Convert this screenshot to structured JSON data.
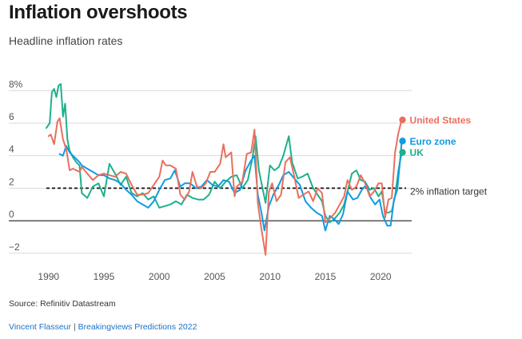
{
  "header": {
    "title": "Inflation overshoots",
    "subtitle": "Headline inflation rates"
  },
  "footer": {
    "source": "Source: Refinitiv Datastream",
    "author": "Vincent Flasseur",
    "separator": "|",
    "publication": "Breakingviews Predictions 2022"
  },
  "colors": {
    "us": "#e8705f",
    "euro": "#0f9be3",
    "uk": "#1fb08c",
    "grid": "#d9d9d9",
    "axis": "#333333",
    "target": "#111111",
    "tick_text": "#555555"
  },
  "chart_data": {
    "type": "line",
    "title": "Inflation overshoots",
    "subtitle": "Headline inflation rates",
    "xlim": [
      1988.5,
      2022.8
    ],
    "ylim": [
      -2.6,
      8.8
    ],
    "x_ticks": [
      1990,
      1995,
      2000,
      2005,
      2010,
      2015,
      2020
    ],
    "x_tick_labels": [
      "1990",
      "1995",
      "2000",
      "2005",
      "2010",
      "2015",
      "2020"
    ],
    "y_ticks": [
      8,
      6,
      4,
      2,
      0,
      -2
    ],
    "y_tick_labels": [
      "8%",
      "6",
      "4",
      "2",
      "0",
      "−2"
    ],
    "grid": "horizontal",
    "reference_line": {
      "y": 2,
      "label": "2% inflation target",
      "style": "dashed"
    },
    "series": [
      {
        "name": "United States",
        "key": "us",
        "points": [
          [
            1990.0,
            5.2
          ],
          [
            1990.2,
            5.3
          ],
          [
            1990.5,
            4.7
          ],
          [
            1990.8,
            6.1
          ],
          [
            1991.0,
            6.3
          ],
          [
            1991.3,
            5.0
          ],
          [
            1991.6,
            4.4
          ],
          [
            1991.9,
            3.1
          ],
          [
            1992.2,
            3.2
          ],
          [
            1992.5,
            3.1
          ],
          [
            1992.8,
            3.0
          ],
          [
            1993.0,
            3.3
          ],
          [
            1993.5,
            2.9
          ],
          [
            1994.0,
            2.5
          ],
          [
            1994.5,
            2.8
          ],
          [
            1995.0,
            2.9
          ],
          [
            1995.5,
            2.8
          ],
          [
            1996.0,
            2.7
          ],
          [
            1996.5,
            3.0
          ],
          [
            1997.0,
            2.9
          ],
          [
            1997.5,
            2.2
          ],
          [
            1998.0,
            1.6
          ],
          [
            1998.5,
            1.6
          ],
          [
            1999.0,
            1.7
          ],
          [
            1999.5,
            2.2
          ],
          [
            2000.0,
            2.7
          ],
          [
            2000.3,
            3.7
          ],
          [
            2000.6,
            3.4
          ],
          [
            2001.0,
            3.4
          ],
          [
            2001.5,
            3.2
          ],
          [
            2001.9,
            1.6
          ],
          [
            2002.3,
            1.3
          ],
          [
            2002.7,
            1.8
          ],
          [
            2003.0,
            3.0
          ],
          [
            2003.4,
            2.1
          ],
          [
            2003.8,
            2.0
          ],
          [
            2004.2,
            2.3
          ],
          [
            2004.6,
            3.0
          ],
          [
            2005.0,
            3.0
          ],
          [
            2005.5,
            3.5
          ],
          [
            2005.8,
            4.7
          ],
          [
            2006.0,
            3.9
          ],
          [
            2006.5,
            4.2
          ],
          [
            2006.8,
            1.5
          ],
          [
            2007.0,
            2.1
          ],
          [
            2007.5,
            2.4
          ],
          [
            2007.9,
            4.1
          ],
          [
            2008.3,
            4.2
          ],
          [
            2008.6,
            5.6
          ],
          [
            2008.9,
            1.1
          ],
          [
            2009.2,
            -0.4
          ],
          [
            2009.6,
            -2.1
          ],
          [
            2009.9,
            1.8
          ],
          [
            2010.2,
            2.3
          ],
          [
            2010.6,
            1.2
          ],
          [
            2011.0,
            1.6
          ],
          [
            2011.4,
            3.6
          ],
          [
            2011.8,
            3.9
          ],
          [
            2012.2,
            2.7
          ],
          [
            2012.6,
            1.4
          ],
          [
            2013.0,
            1.6
          ],
          [
            2013.5,
            1.8
          ],
          [
            2013.9,
            1.2
          ],
          [
            2014.3,
            2.0
          ],
          [
            2014.7,
            1.7
          ],
          [
            2015.0,
            -0.1
          ],
          [
            2015.5,
            0.2
          ],
          [
            2015.9,
            0.5
          ],
          [
            2016.3,
            1.0
          ],
          [
            2016.7,
            1.5
          ],
          [
            2017.0,
            2.5
          ],
          [
            2017.4,
            1.9
          ],
          [
            2017.8,
            2.1
          ],
          [
            2018.2,
            2.8
          ],
          [
            2018.6,
            2.3
          ],
          [
            2019.0,
            1.5
          ],
          [
            2019.4,
            1.8
          ],
          [
            2019.8,
            2.3
          ],
          [
            2020.1,
            2.3
          ],
          [
            2020.4,
            0.2
          ],
          [
            2020.7,
            1.3
          ],
          [
            2021.0,
            1.4
          ],
          [
            2021.3,
            4.2
          ],
          [
            2021.6,
            5.4
          ],
          [
            2021.9,
            6.2
          ]
        ]
      },
      {
        "name": "Euro zone",
        "key": "euro",
        "points": [
          [
            1991.0,
            4.1
          ],
          [
            1991.3,
            4.0
          ],
          [
            1991.6,
            4.6
          ],
          [
            1991.9,
            4.2
          ],
          [
            1992.2,
            4.0
          ],
          [
            1992.5,
            3.8
          ],
          [
            1992.8,
            3.6
          ],
          [
            1993.0,
            3.4
          ],
          [
            1993.5,
            3.2
          ],
          [
            1994.0,
            3.0
          ],
          [
            1994.5,
            2.8
          ],
          [
            1995.0,
            2.8
          ],
          [
            1995.5,
            2.6
          ],
          [
            1996.0,
            2.5
          ],
          [
            1996.5,
            2.3
          ],
          [
            1997.0,
            1.9
          ],
          [
            1997.5,
            1.6
          ],
          [
            1998.0,
            1.2
          ],
          [
            1998.5,
            1.0
          ],
          [
            1999.0,
            0.8
          ],
          [
            1999.5,
            1.2
          ],
          [
            2000.0,
            1.9
          ],
          [
            2000.5,
            2.5
          ],
          [
            2001.0,
            2.6
          ],
          [
            2001.4,
            3.1
          ],
          [
            2001.9,
            2.1
          ],
          [
            2002.3,
            2.3
          ],
          [
            2002.8,
            2.3
          ],
          [
            2003.3,
            2.0
          ],
          [
            2003.8,
            2.1
          ],
          [
            2004.3,
            2.5
          ],
          [
            2004.8,
            2.2
          ],
          [
            2005.3,
            2.1
          ],
          [
            2005.8,
            2.5
          ],
          [
            2006.3,
            2.4
          ],
          [
            2006.8,
            1.7
          ],
          [
            2007.3,
            1.9
          ],
          [
            2007.8,
            3.1
          ],
          [
            2008.3,
            3.7
          ],
          [
            2008.6,
            4.0
          ],
          [
            2008.9,
            1.6
          ],
          [
            2009.2,
            0.6
          ],
          [
            2009.5,
            -0.6
          ],
          [
            2009.9,
            0.9
          ],
          [
            2010.3,
            1.6
          ],
          [
            2010.8,
            2.2
          ],
          [
            2011.2,
            2.8
          ],
          [
            2011.7,
            3.0
          ],
          [
            2012.2,
            2.6
          ],
          [
            2012.7,
            2.2
          ],
          [
            2013.2,
            1.2
          ],
          [
            2013.7,
            0.8
          ],
          [
            2014.2,
            0.5
          ],
          [
            2014.7,
            0.3
          ],
          [
            2015.0,
            -0.6
          ],
          [
            2015.4,
            0.3
          ],
          [
            2015.8,
            0.1
          ],
          [
            2016.2,
            -0.2
          ],
          [
            2016.6,
            0.4
          ],
          [
            2017.0,
            1.8
          ],
          [
            2017.5,
            1.3
          ],
          [
            2017.9,
            1.4
          ],
          [
            2018.3,
            1.9
          ],
          [
            2018.7,
            2.2
          ],
          [
            2019.1,
            1.4
          ],
          [
            2019.5,
            1.0
          ],
          [
            2019.9,
            1.3
          ],
          [
            2020.2,
            0.3
          ],
          [
            2020.6,
            -0.3
          ],
          [
            2020.9,
            -0.3
          ],
          [
            2021.2,
            1.3
          ],
          [
            2021.5,
            1.9
          ],
          [
            2021.8,
            4.1
          ],
          [
            2021.9,
            4.9
          ]
        ]
      },
      {
        "name": "UK",
        "key": "uk",
        "points": [
          [
            1989.8,
            5.7
          ],
          [
            1990.1,
            6.0
          ],
          [
            1990.3,
            7.9
          ],
          [
            1990.5,
            8.1
          ],
          [
            1990.7,
            7.6
          ],
          [
            1990.9,
            8.3
          ],
          [
            1991.1,
            8.4
          ],
          [
            1991.3,
            6.4
          ],
          [
            1991.5,
            7.2
          ],
          [
            1991.7,
            5.0
          ],
          [
            1991.9,
            4.3
          ],
          [
            1992.2,
            3.9
          ],
          [
            1992.5,
            3.6
          ],
          [
            1992.8,
            3.4
          ],
          [
            1993.0,
            1.7
          ],
          [
            1993.5,
            1.4
          ],
          [
            1994.0,
            2.1
          ],
          [
            1994.5,
            2.3
          ],
          [
            1995.0,
            1.5
          ],
          [
            1995.5,
            3.5
          ],
          [
            1996.0,
            2.9
          ],
          [
            1996.5,
            2.2
          ],
          [
            1997.0,
            2.7
          ],
          [
            1997.5,
            1.7
          ],
          [
            1998.0,
            1.5
          ],
          [
            1998.5,
            1.7
          ],
          [
            1999.0,
            1.3
          ],
          [
            1999.5,
            1.5
          ],
          [
            2000.0,
            0.8
          ],
          [
            2000.5,
            0.9
          ],
          [
            2001.0,
            1.0
          ],
          [
            2001.5,
            1.2
          ],
          [
            2002.0,
            1.0
          ],
          [
            2002.5,
            1.6
          ],
          [
            2003.0,
            1.4
          ],
          [
            2003.5,
            1.3
          ],
          [
            2004.0,
            1.3
          ],
          [
            2004.5,
            1.6
          ],
          [
            2005.0,
            2.4
          ],
          [
            2005.5,
            2.0
          ],
          [
            2006.0,
            2.4
          ],
          [
            2006.5,
            2.7
          ],
          [
            2007.0,
            2.8
          ],
          [
            2007.5,
            2.0
          ],
          [
            2008.0,
            2.5
          ],
          [
            2008.4,
            3.8
          ],
          [
            2008.7,
            5.2
          ],
          [
            2009.0,
            3.1
          ],
          [
            2009.3,
            2.1
          ],
          [
            2009.6,
            1.1
          ],
          [
            2010.0,
            3.4
          ],
          [
            2010.4,
            3.1
          ],
          [
            2010.8,
            3.3
          ],
          [
            2011.2,
            4.0
          ],
          [
            2011.7,
            5.2
          ],
          [
            2012.0,
            3.6
          ],
          [
            2012.5,
            2.6
          ],
          [
            2012.9,
            2.7
          ],
          [
            2013.4,
            2.9
          ],
          [
            2013.9,
            2.0
          ],
          [
            2014.3,
            1.6
          ],
          [
            2014.7,
            1.2
          ],
          [
            2015.0,
            0.3
          ],
          [
            2015.4,
            -0.1
          ],
          [
            2015.8,
            0.1
          ],
          [
            2016.3,
            0.5
          ],
          [
            2016.7,
            1.0
          ],
          [
            2017.0,
            1.8
          ],
          [
            2017.4,
            2.9
          ],
          [
            2017.8,
            3.1
          ],
          [
            2018.2,
            2.5
          ],
          [
            2018.6,
            2.4
          ],
          [
            2019.0,
            1.9
          ],
          [
            2019.4,
            2.0
          ],
          [
            2019.8,
            1.5
          ],
          [
            2020.1,
            1.8
          ],
          [
            2020.4,
            0.5
          ],
          [
            2020.7,
            0.5
          ],
          [
            2021.0,
            0.6
          ],
          [
            2021.3,
            1.5
          ],
          [
            2021.6,
            3.1
          ],
          [
            2021.9,
            4.2
          ]
        ]
      }
    ],
    "end_labels": [
      "United States",
      "Euro zone",
      "UK"
    ]
  }
}
